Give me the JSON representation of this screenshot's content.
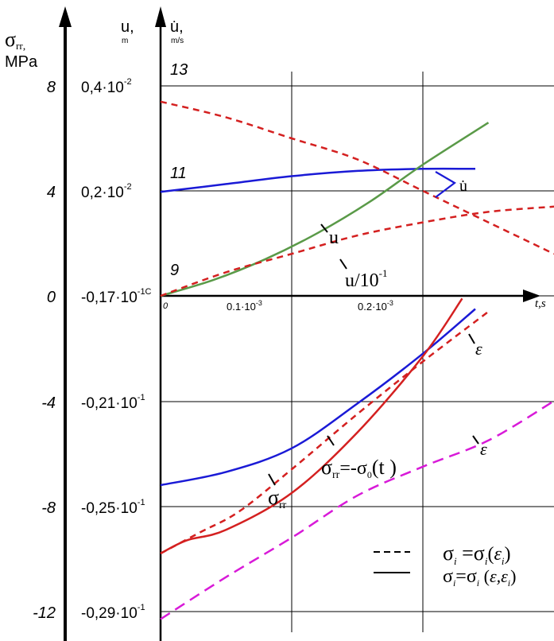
{
  "chart_data": {
    "type": "line",
    "axes": {
      "stress": {
        "symbol": "σ",
        "sub": "rr",
        "unit_suffix": ",",
        "unit": "MPa",
        "ticks": [
          "8",
          "4",
          "0",
          "-4",
          "-8",
          "-12"
        ],
        "range": [
          -12,
          8
        ]
      },
      "displacement": {
        "symbol": "u",
        "suffix": ",",
        "unit": "m",
        "ticks": [
          {
            "main": "0,4·10",
            "sup": "-2"
          },
          {
            "main": "0,2·10",
            "sup": "-2"
          },
          {
            "main": "-0,17·10",
            "sup": "-1C"
          },
          {
            "main": "-0,21·10",
            "sup": "-1"
          },
          {
            "main": "-0,25·10",
            "sup": "-1"
          },
          {
            "main": "-0,29·10",
            "sup": "-1"
          }
        ]
      },
      "velocity": {
        "symbol": "u̇",
        "suffix": ",",
        "unit": "m/s",
        "ticks": [
          "13",
          "11",
          "9"
        ]
      },
      "time": {
        "label": "t,s",
        "origin_label": "0",
        "ticks": [
          {
            "value": 0.0001,
            "main": "0.1·10",
            "sup": "-3"
          },
          {
            "value": 0.0002,
            "main": "0.2·10",
            "sup": "-3"
          }
        ],
        "range": [
          0,
          0.0003
        ]
      }
    },
    "grid": true,
    "series": [
      {
        "id": "u-dot",
        "color": "#1a1ad6",
        "style": "solid",
        "axis": "velocity",
        "x": [
          0,
          5e-05,
          0.0001,
          0.00015,
          0.0002,
          0.00024
        ],
        "y": [
          10.98,
          11.13,
          11.28,
          11.38,
          11.42,
          11.42
        ]
      },
      {
        "id": "u",
        "color": "#5a9a48",
        "style": "solid",
        "axis": "displacement",
        "x": [
          0,
          4e-05,
          8e-05,
          0.00012,
          0.00016,
          0.0002,
          0.00025
        ],
        "y": [
          0,
          0.0003,
          0.0007,
          0.0012,
          0.0018,
          0.0025,
          0.0033
        ]
      },
      {
        "id": "u-over-10",
        "color": "#d42020",
        "style": "dashed",
        "axis": "displacement",
        "x": [
          0,
          5e-05,
          0.0001,
          0.00015,
          0.0002,
          0.00025,
          0.0003
        ],
        "y": [
          0,
          0.00045,
          0.0008,
          0.00115,
          0.0014,
          0.0016,
          0.0017
        ]
      },
      {
        "id": "decreasing-dashed",
        "color": "#d42020",
        "style": "dashed",
        "axis": "displacement",
        "x": [
          0,
          5e-05,
          0.0001,
          0.00015,
          0.0002,
          0.00025,
          0.0003
        ],
        "y": [
          0.0037,
          0.0034,
          0.003,
          0.0026,
          0.002,
          0.0014,
          0.0008
        ]
      },
      {
        "id": "eps-blue",
        "color": "#1a1ad6",
        "style": "solid",
        "axis": "stress",
        "x": [
          0,
          5e-05,
          0.0001,
          0.00015,
          0.0002,
          0.00024
        ],
        "y": [
          -7.2,
          -6.7,
          -5.8,
          -4.1,
          -2.2,
          -0.5
        ]
      },
      {
        "id": "sigma-rr-solid",
        "color": "#d42020",
        "style": "solid",
        "axis": "stress",
        "x": [
          0,
          2e-05,
          5e-05,
          0.0001,
          0.00015,
          0.0002,
          0.00023
        ],
        "y": [
          -9.8,
          -9.3,
          -8.9,
          -7.5,
          -5.2,
          -2.3,
          -0.1
        ]
      },
      {
        "id": "sigma-rr-dashed",
        "color": "#d42020",
        "style": "dashed",
        "axis": "stress",
        "x": [
          0,
          3e-05,
          6e-05,
          0.0001,
          0.00015,
          0.0002,
          0.00025
        ],
        "y": [
          -9.8,
          -9.0,
          -8.2,
          -6.6,
          -4.5,
          -2.5,
          -0.6
        ]
      },
      {
        "id": "eps-magenta",
        "color": "#d81ad8",
        "style": "dashed",
        "axis": "stress",
        "x": [
          0,
          5e-05,
          0.0001,
          0.00015,
          0.0002,
          0.00025,
          0.0003
        ],
        "y": [
          -12.3,
          -10.7,
          -9.2,
          -7.6,
          -6.5,
          -5.5,
          -4.0
        ]
      }
    ],
    "annotations": [
      {
        "id": "u-dot",
        "text": "u̇"
      },
      {
        "id": "u",
        "text": "u"
      },
      {
        "id": "u10",
        "text": "u/10",
        "sup": "-1"
      },
      {
        "id": "eps1",
        "text": "ε"
      },
      {
        "id": "eps2",
        "text": "ε"
      },
      {
        "id": "sig-rr",
        "text": "σ",
        "sub": "rr"
      },
      {
        "id": "sig-eq",
        "text": "σ",
        "sub": "rr",
        "rest": "=-σ",
        "sub2": "0",
        "tail": "(t )"
      }
    ],
    "legend": {
      "placement": "bottom-right",
      "entries": [
        {
          "style": "dashed",
          "parts": [
            "σ",
            "i",
            " =σ",
            "i",
            "(",
            "ε",
            "i",
            ")"
          ]
        },
        {
          "style": "solid",
          "parts": [
            "σ",
            "i",
            "=σ",
            "i",
            " (",
            "ε",
            ",ε",
            "i",
            ")"
          ]
        }
      ]
    }
  }
}
